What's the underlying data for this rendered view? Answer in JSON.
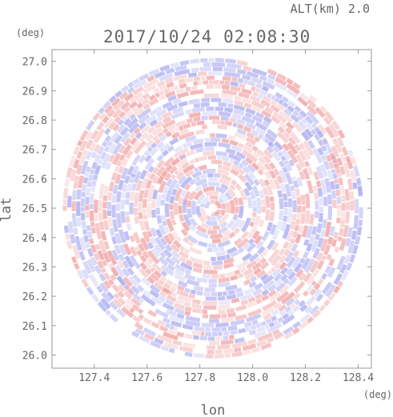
{
  "header": {
    "altitude_label": "ALT(km) 2.0",
    "timestamp": "2017/10/24 02:08:30"
  },
  "chart_data": {
    "type": "heatmap",
    "xlabel": "lon",
    "ylabel": "lat",
    "x_unit": "(deg)",
    "y_unit": "(deg)",
    "xlim": [
      127.24,
      128.45
    ],
    "ylim": [
      25.955,
      27.04
    ],
    "x_ticks": [
      127.4,
      127.6,
      127.8,
      128.0,
      128.2,
      128.4
    ],
    "x_tick_labels": [
      "127.4",
      "127.6",
      "127.8",
      "128.0",
      "128.2",
      "128.4"
    ],
    "y_ticks": [
      27.0,
      26.9,
      26.8,
      26.7,
      26.6,
      26.5,
      26.4,
      26.3,
      26.2,
      26.1,
      26.0
    ],
    "y_tick_labels": [
      "27.0",
      "26.9",
      "26.8",
      "26.7",
      "26.6",
      "26.5",
      "26.4",
      "26.3",
      "26.2",
      "26.1",
      "26.0"
    ],
    "radar_center": {
      "lon": 127.85,
      "lat": 26.5
    },
    "radar_range_deg": 0.54,
    "colors": {
      "positive": "#f0a0a0",
      "negative": "#a8aaf0",
      "background": "#ffffff",
      "frame": "#999999"
    }
  }
}
